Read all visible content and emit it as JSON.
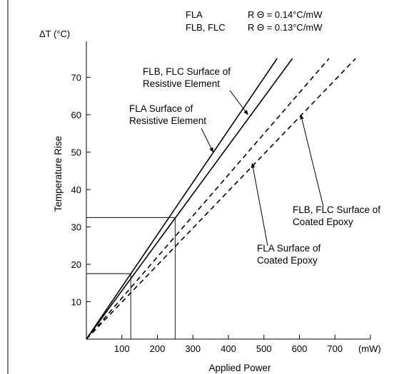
{
  "chart_data": {
    "type": "line",
    "x_unit": "(mW)",
    "y_unit_label": "ΔT (°C)",
    "ylabel": "Temperature Rise",
    "xlabel": "Applied Power",
    "xlim": [
      0,
      800
    ],
    "ylim": [
      0,
      80
    ],
    "x_ticks": [
      100,
      200,
      300,
      400,
      500,
      600,
      700
    ],
    "y_ticks": [
      10,
      20,
      30,
      40,
      50,
      60,
      70
    ],
    "legend_rows": [
      {
        "name": "FLA",
        "value": "R Θ = 0.14°C/mW"
      },
      {
        "name": "FLB, FLC",
        "value": "R Θ = 0.13°C/mW"
      }
    ],
    "series": [
      {
        "name": "FLA Surface of Resistive Element",
        "style": "solid",
        "x": [
          0,
          537
        ],
        "y": [
          0,
          75
        ]
      },
      {
        "name": "FLB, FLC Surface of Resistive Element",
        "style": "solid",
        "x": [
          0,
          580
        ],
        "y": [
          0,
          75
        ]
      },
      {
        "name": "FLA Surface of Coated Epoxy",
        "style": "dashed",
        "x": [
          0,
          683
        ],
        "y": [
          0,
          75
        ]
      },
      {
        "name": "FLB, FLC Surface of Coated Epoxy",
        "style": "dashed",
        "x": [
          0,
          758
        ],
        "y": [
          0,
          75
        ]
      }
    ],
    "reference_lines": [
      {
        "x": 125,
        "y": 17.5
      },
      {
        "x": 250,
        "y": 32.5
      }
    ],
    "annotations": [
      {
        "lines": [
          "FLB, FLC Surface of",
          "Resistive Element"
        ],
        "points_to": {
          "x": 455,
          "y": 60
        }
      },
      {
        "lines": [
          "FLA Surface of",
          "Resistive Element"
        ],
        "points_to": {
          "x": 357,
          "y": 50
        }
      },
      {
        "lines": [
          "FLB, FLC Surface of",
          "Coated Epoxy"
        ],
        "points_to": {
          "x": 604,
          "y": 60
        }
      },
      {
        "lines": [
          "FLA Surface of",
          "Coated Epoxy"
        ],
        "points_to": {
          "x": 467,
          "y": 47
        }
      }
    ]
  }
}
